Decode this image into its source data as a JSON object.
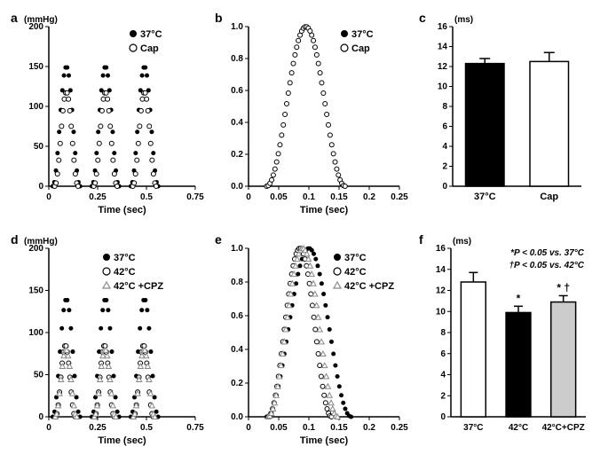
{
  "panel_a": {
    "label": "a",
    "type": "line-scatter",
    "y_unit": "(mmHg)",
    "x_label": "Time (sec)",
    "xlim": [
      0,
      0.75
    ],
    "ylim": [
      0,
      200
    ],
    "xticks": [
      0,
      0.25,
      0.5,
      0.75
    ],
    "yticks": [
      0,
      50,
      100,
      150,
      200
    ],
    "legend": [
      {
        "label": "37°C",
        "marker": "filled-circle",
        "color": "#000000"
      },
      {
        "label": "Cap",
        "marker": "open-circle",
        "color": "#000000"
      }
    ],
    "series_37": {
      "peaks_x": [
        0.09,
        0.29,
        0.49
      ],
      "peak_y": 150,
      "base_y": 0,
      "width": 0.14
    },
    "series_cap": {
      "peaks_x": [
        0.09,
        0.29,
        0.49
      ],
      "peak_y": 118,
      "base_y": 0,
      "width": 0.12
    }
  },
  "panel_b": {
    "label": "b",
    "type": "line-scatter",
    "x_label": "Time (sec)",
    "xlim": [
      0,
      0.25
    ],
    "ylim": [
      0,
      1.0
    ],
    "xticks": [
      0,
      0.05,
      0.1,
      0.15,
      0.2,
      0.25
    ],
    "yticks": [
      0,
      0.2,
      0.4,
      0.6,
      0.8,
      1.0
    ],
    "legend": [
      {
        "label": "37°C",
        "marker": "filled-circle",
        "color": "#000000"
      },
      {
        "label": "Cap",
        "marker": "open-circle",
        "color": "#000000"
      }
    ],
    "curve_37": {
      "center": 0.095,
      "width": 0.13,
      "peak": 1.0
    },
    "curve_cap": {
      "center": 0.095,
      "width": 0.13,
      "peak": 1.0
    }
  },
  "panel_c": {
    "label": "c",
    "type": "bar",
    "y_unit": "(ms)",
    "ylim": [
      0,
      16
    ],
    "yticks": [
      0,
      2,
      4,
      6,
      8,
      10,
      12,
      14,
      16
    ],
    "bars": [
      {
        "label": "37°C",
        "value": 12.3,
        "err": 0.5,
        "fill": "#000000"
      },
      {
        "label": "Cap",
        "value": 12.5,
        "err": 0.9,
        "fill": "#ffffff"
      }
    ],
    "bar_width": 0.6
  },
  "panel_d": {
    "label": "d",
    "type": "line-scatter",
    "y_unit": "(mmHg)",
    "x_label": "Time (sec)",
    "xlim": [
      0,
      0.75
    ],
    "ylim": [
      0,
      200
    ],
    "xticks": [
      0,
      0.25,
      0.5,
      0.75
    ],
    "yticks": [
      0,
      50,
      100,
      150,
      200
    ],
    "legend": [
      {
        "label": "37°C",
        "marker": "filled-circle",
        "color": "#000000"
      },
      {
        "label": "42°C",
        "marker": "open-circle",
        "color": "#000000"
      },
      {
        "label": "42°C +CPZ",
        "marker": "open-triangle",
        "color": "#888888"
      }
    ],
    "series_37": {
      "peaks_x": [
        0.09,
        0.29,
        0.49
      ],
      "peak_y": 140,
      "width": 0.14
    },
    "series_42": {
      "peaks_x": [
        0.085,
        0.285,
        0.485
      ],
      "peak_y": 85,
      "width": 0.1
    },
    "series_42cpz": {
      "peaks_x": [
        0.088,
        0.288,
        0.488
      ],
      "peak_y": 80,
      "width": 0.11
    }
  },
  "panel_e": {
    "label": "e",
    "type": "line-scatter",
    "x_label": "Time (sec)",
    "xlim": [
      0,
      0.25
    ],
    "ylim": [
      0,
      1.0
    ],
    "xticks": [
      0,
      0.05,
      0.1,
      0.15,
      0.2,
      0.25
    ],
    "yticks": [
      0,
      0.2,
      0.4,
      0.6,
      0.8,
      1.0
    ],
    "legend": [
      {
        "label": "37°C",
        "marker": "filled-circle",
        "color": "#000000"
      },
      {
        "label": "42°C",
        "marker": "open-circle",
        "color": "#000000"
      },
      {
        "label": "42°C +CPZ",
        "marker": "open-triangle",
        "color": "#888888"
      }
    ],
    "curve_37": {
      "center": 0.1,
      "width": 0.14,
      "peak": 1.0
    },
    "curve_42": {
      "center": 0.085,
      "width": 0.105,
      "peak": 1.0
    },
    "curve_42cpz": {
      "center": 0.09,
      "width": 0.115,
      "peak": 1.0
    }
  },
  "panel_f": {
    "label": "f",
    "type": "bar",
    "y_unit": "(ms)",
    "ylim": [
      0,
      16
    ],
    "yticks": [
      0,
      2,
      4,
      6,
      8,
      10,
      12,
      14,
      16
    ],
    "annotations": [
      {
        "text": "*P < 0.05 vs. 37°C"
      },
      {
        "text": "†P < 0.05 vs. 42°C"
      }
    ],
    "bars": [
      {
        "label": "37°C",
        "value": 12.8,
        "err": 0.9,
        "fill": "#ffffff",
        "sig": ""
      },
      {
        "label": "42°C",
        "value": 9.9,
        "err": 0.6,
        "fill": "#000000",
        "sig": "*"
      },
      {
        "label": "42°C+CPZ",
        "value": 10.9,
        "err": 0.6,
        "fill": "#cccccc",
        "sig": "* †"
      }
    ],
    "bar_width": 0.55
  },
  "colors": {
    "axis": "#000000",
    "bg": "#ffffff"
  },
  "fonts": {
    "label_size": 11,
    "tick_size": 10,
    "panel_label_size": 14
  }
}
